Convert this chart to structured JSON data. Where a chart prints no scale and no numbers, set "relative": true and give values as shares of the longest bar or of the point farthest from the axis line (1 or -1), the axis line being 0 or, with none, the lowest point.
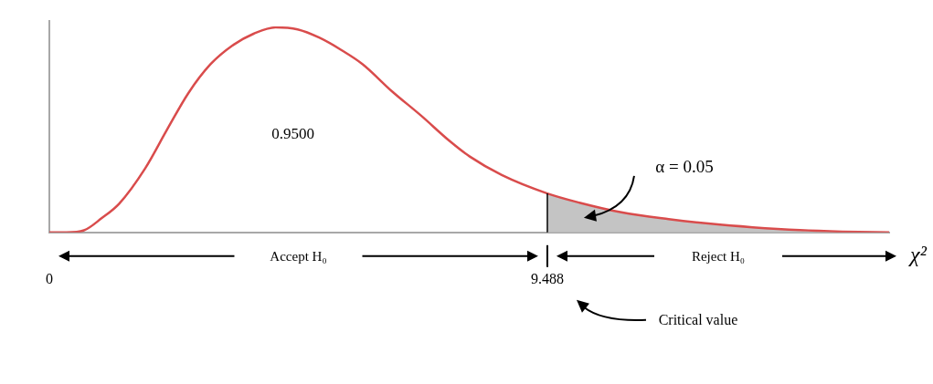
{
  "chart_data": {
    "type": "line",
    "relative": true,
    "xlabel": "χ²",
    "xlim": [
      0,
      16
    ],
    "xticks": [
      0,
      9.488
    ],
    "x": [
      0,
      0.33,
      0.66,
      1.0,
      1.33,
      1.82,
      2.24,
      2.65,
      3.07,
      3.48,
      3.9,
      4.31,
      4.73,
      5.14,
      5.56,
      5.97,
      6.52,
      7.08,
      7.63,
      8.01,
      8.62,
      9.488,
      10.1,
      10.9,
      11.8,
      12.6,
      13.4,
      14.3,
      15.1,
      16.0
    ],
    "series": [
      {
        "color": "#d94c4c",
        "values": [
          0,
          0,
          0.01,
          0.07,
          0.14,
          0.31,
          0.5,
          0.68,
          0.82,
          0.91,
          0.97,
          1.0,
          0.99,
          0.95,
          0.89,
          0.82,
          0.69,
          0.57,
          0.445,
          0.37,
          0.28,
          0.19,
          0.145,
          0.098,
          0.065,
          0.042,
          0.025,
          0.011,
          0.004,
          0
        ]
      },
      {
        "type": "area",
        "color": "#c4c4c4",
        "x": [
          9.488,
          10.1,
          10.9,
          11.8,
          12.6,
          13.4,
          14.3,
          15.1,
          16.0
        ],
        "values": [
          0.19,
          0.145,
          0.098,
          0.065,
          0.042,
          0.025,
          0.011,
          0.004,
          0
        ]
      }
    ],
    "ref_lines": [
      {
        "axis": "x",
        "value": 9.488,
        "label": "Critical value",
        "color": "#000000"
      }
    ],
    "annotations": [
      "0.9500",
      "α = 0.05",
      "Accept H₀",
      "Reject H₀"
    ]
  }
}
